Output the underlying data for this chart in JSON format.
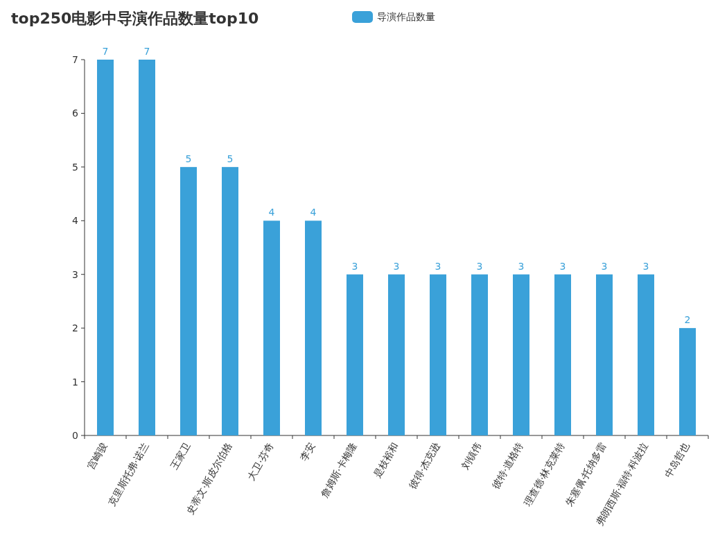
{
  "chart_data": {
    "type": "bar",
    "title": "top250电影中导演作品数量top10",
    "categories": [
      "宫崎骏",
      "克里斯托弗·诺兰",
      "王家卫",
      "史蒂文·斯皮尔伯格",
      "大卫·芬奇",
      "李安",
      "詹姆斯·卡梅隆",
      "是枝裕和",
      "彼得·杰克逊",
      "刘镇伟",
      "彼特·道格特",
      "理查德·林克莱特",
      "朱塞佩·托纳多雷",
      "弗朗西斯·福特·科波拉",
      "中岛哲也"
    ],
    "series": [
      {
        "name": "导演作品数量",
        "color": "#3aa1d9",
        "values": [
          7,
          7,
          5,
          5,
          4,
          4,
          3,
          3,
          3,
          3,
          3,
          3,
          3,
          3,
          2
        ]
      }
    ],
    "ylim": [
      0,
      7
    ],
    "yticks": [
      0,
      1,
      2,
      3,
      4,
      5,
      6,
      7
    ],
    "data_labels": true,
    "legend": "top",
    "grid": false
  }
}
